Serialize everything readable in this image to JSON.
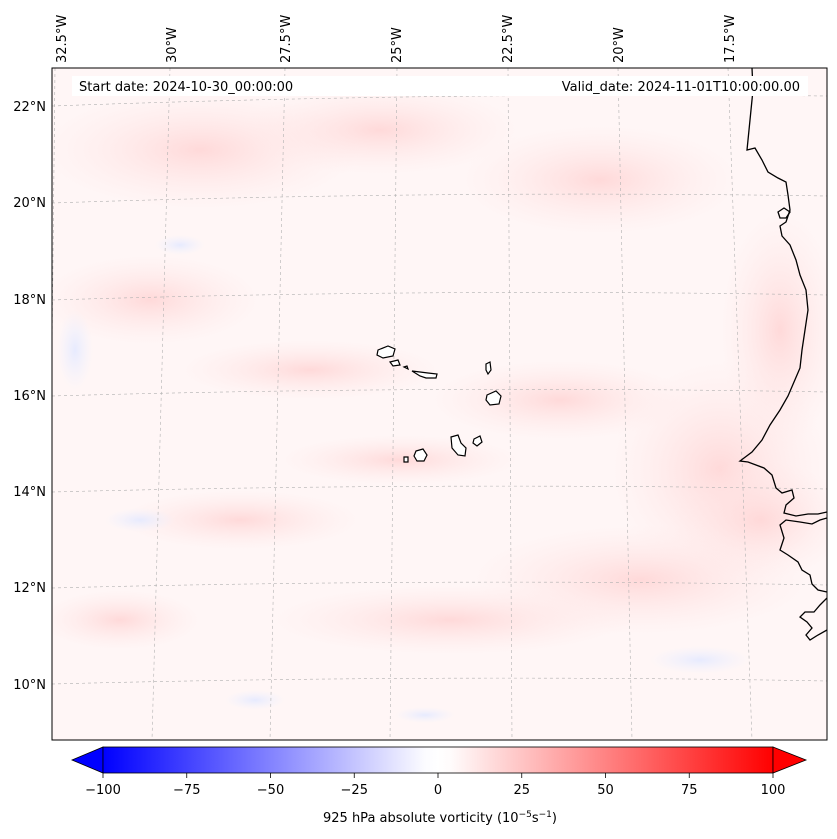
{
  "header": {
    "start_date": "Start date: 2024-10-30_00:00:00",
    "valid_date": "Valid_date: 2024-11-01T10:00:00.00"
  },
  "map": {
    "lon_labels": [
      "32.5°W",
      "30°W",
      "27.5°W",
      "25°W",
      "22.5°W",
      "20°W",
      "17.5°W"
    ],
    "lat_labels": [
      "22°N",
      "20°N",
      "18°N",
      "16°N",
      "14°N",
      "12°N",
      "10°N"
    ],
    "field": "925 hPa absolute vorticity"
  },
  "colorbar": {
    "ticks": [
      "−100",
      "−75",
      "−50",
      "−25",
      "0",
      "25",
      "50",
      "75",
      "100"
    ],
    "min": -100,
    "max": 100,
    "low_color": "#0000ff",
    "high_color": "#ff0000",
    "label_prefix": "925 hPa absolute vorticity (10",
    "label_exp1": "−5",
    "label_mid": "s",
    "label_exp2": "−1",
    "label_suffix": ")"
  }
}
